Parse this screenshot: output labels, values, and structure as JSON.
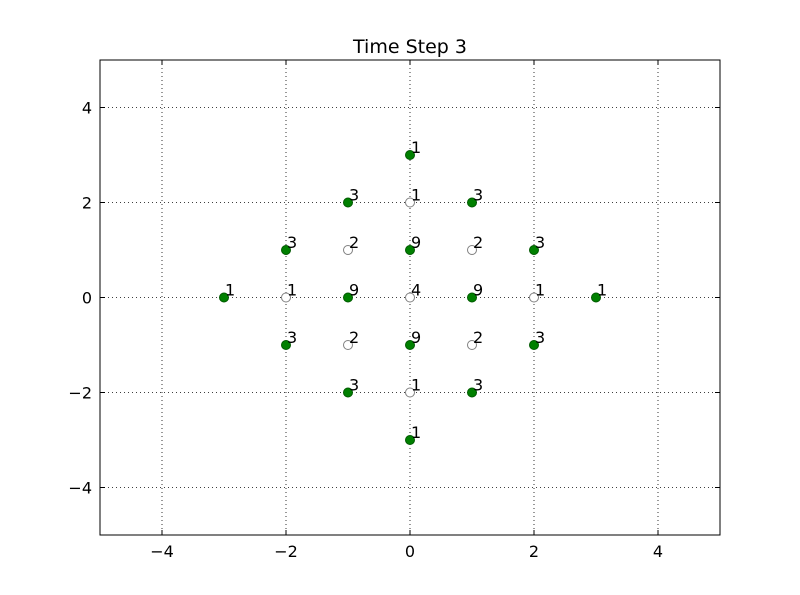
{
  "chart_data": {
    "type": "scatter",
    "title": "Time Step 3",
    "xlim": [
      -5,
      5
    ],
    "ylim": [
      -5,
      5
    ],
    "xticks": [
      {
        "value": -4,
        "label": "−4"
      },
      {
        "value": -2,
        "label": "−2"
      },
      0,
      2,
      4
    ],
    "yticks": [
      {
        "value": -4,
        "label": "−4"
      },
      {
        "value": -2,
        "label": "−2"
      },
      0,
      2,
      4
    ],
    "grid": true,
    "series": [
      {
        "facecolor": "#008000",
        "edgecolor": "#005a00",
        "x": [
          0,
          -1,
          1,
          -2,
          0,
          2,
          -3,
          -1,
          1,
          3,
          -2,
          0,
          2,
          -1,
          1,
          0
        ],
        "values": [
          3,
          2,
          2,
          1,
          1,
          1,
          0,
          0,
          0,
          0,
          -1,
          -1,
          -1,
          -2,
          -2,
          -3
        ],
        "point_labels": [
          1,
          3,
          3,
          3,
          9,
          3,
          1,
          9,
          9,
          1,
          3,
          9,
          3,
          3,
          3,
          1
        ]
      },
      {
        "facecolor": "#ffffff",
        "edgecolor": "#808080",
        "x": [
          0,
          -1,
          1,
          -2,
          0,
          2,
          -1,
          1,
          0
        ],
        "values": [
          2,
          1,
          1,
          0,
          0,
          0,
          -1,
          -1,
          -2
        ],
        "point_labels": [
          1,
          2,
          2,
          1,
          4,
          1,
          2,
          2,
          1
        ]
      }
    ]
  }
}
